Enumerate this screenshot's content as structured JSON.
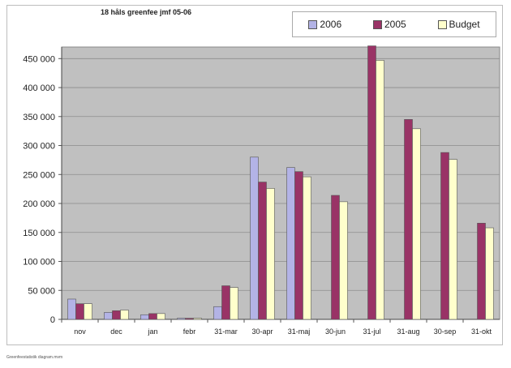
{
  "chart_data": {
    "type": "bar",
    "title": "18 håls greenfee jmf 05-06",
    "categories": [
      "nov",
      "dec",
      "jan",
      "febr",
      "31-mar",
      "30-apr",
      "31-maj",
      "30-jun",
      "31-jul",
      "31-aug",
      "30-sep",
      "31-okt"
    ],
    "series": [
      {
        "name": "2006",
        "color": "#b3b3e6",
        "values": [
          35000,
          12000,
          8000,
          2000,
          22000,
          280000,
          262000,
          null,
          null,
          null,
          null,
          null
        ]
      },
      {
        "name": "2005",
        "color": "#993366",
        "values": [
          27000,
          15000,
          10000,
          2000,
          58000,
          237000,
          255000,
          214000,
          472000,
          345000,
          288000,
          166000
        ]
      },
      {
        "name": "Budget",
        "color": "#ffffcc",
        "values": [
          27000,
          16000,
          10000,
          2000,
          55000,
          226000,
          246000,
          203000,
          447000,
          329000,
          276000,
          158000
        ]
      }
    ],
    "ylim": [
      0,
      470000
    ],
    "yticks": [
      0,
      50000,
      100000,
      150000,
      200000,
      250000,
      300000,
      350000,
      400000,
      450000
    ],
    "ytick_labels": [
      "0",
      "50 000",
      "100 000",
      "150 000",
      "200 000",
      "250 000",
      "300 000",
      "350 000",
      "400 000",
      "450 000"
    ],
    "xlabel": "",
    "ylabel": "",
    "grid": true,
    "legend_position": "top-right",
    "plot_background": "#c0c0c0"
  },
  "footnote": "Greenfeestatistik diagram.mvm"
}
